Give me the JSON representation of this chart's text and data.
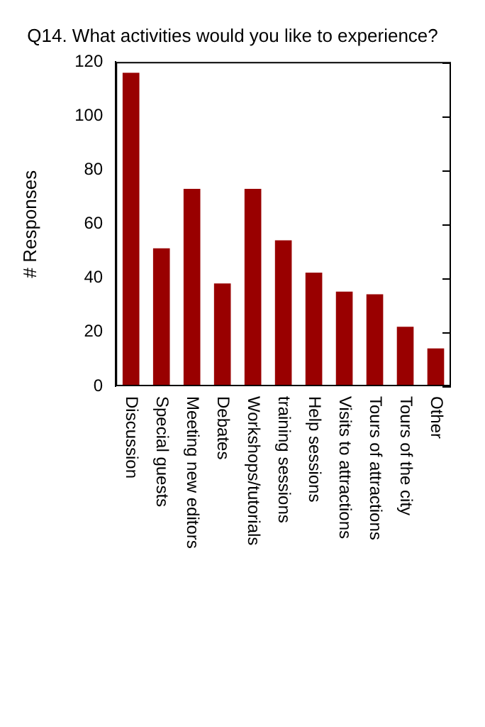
{
  "chart_data": {
    "type": "bar",
    "title": "Q14. What activities would you like to experience?",
    "ylabel": "# Responses",
    "categories": [
      "Discussion",
      "Special guests",
      "Meeting new editors",
      "Debates",
      "Workshops/tutorials",
      "training sessions",
      "Help sessions",
      "Visits to attractions",
      "Tours of attractions",
      "Tours of the city",
      "Other"
    ],
    "values": [
      116,
      51,
      73,
      38,
      73,
      54,
      42,
      35,
      34,
      22,
      14
    ],
    "color": "#990000",
    "ylim": [
      0,
      120
    ],
    "yticks": [
      0,
      20,
      40,
      60,
      80,
      100,
      120
    ],
    "grid": false,
    "legend": false
  }
}
